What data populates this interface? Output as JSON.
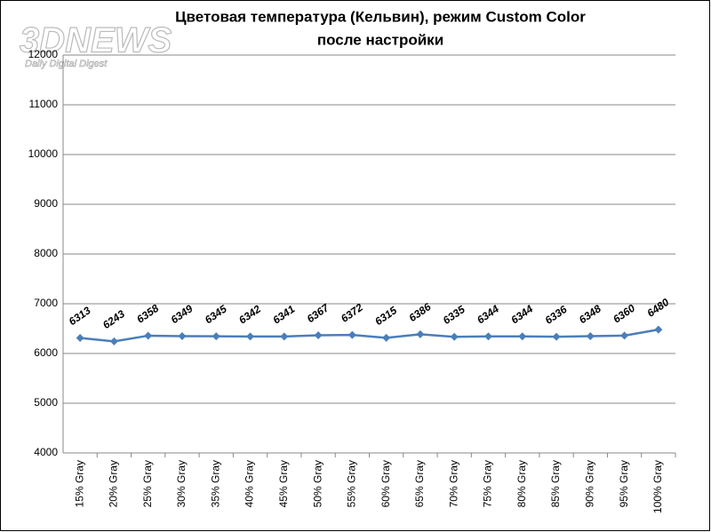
{
  "chart_data": {
    "type": "line",
    "title": [
      "Цветовая температура (Кельвин),  режим Custom Color",
      "после настройки"
    ],
    "watermark": "3DNEWS",
    "watermark_subtitle": "Daily Digital Digest",
    "categories": [
      "15% Gray",
      "20% Gray",
      "25% Gray",
      "30% Gray",
      "35% Gray",
      "40% Gray",
      "45% Gray",
      "50% Gray",
      "55% Gray",
      "60% Gray",
      "65% Gray",
      "70% Gray",
      "75% Gray",
      "80% Gray",
      "85% Gray",
      "90% Gray",
      "95% Gray",
      "100% Gray"
    ],
    "values": [
      6313,
      6243,
      6358,
      6349,
      6345,
      6342,
      6341,
      6367,
      6372,
      6315,
      6386,
      6335,
      6344,
      6344,
      6336,
      6348,
      6360,
      6480
    ],
    "color": "#4a7ebb",
    "ylim": [
      4000,
      12000
    ],
    "yticks": [
      4000,
      5000,
      6000,
      7000,
      8000,
      9000,
      10000,
      11000,
      12000
    ],
    "grid": true
  }
}
